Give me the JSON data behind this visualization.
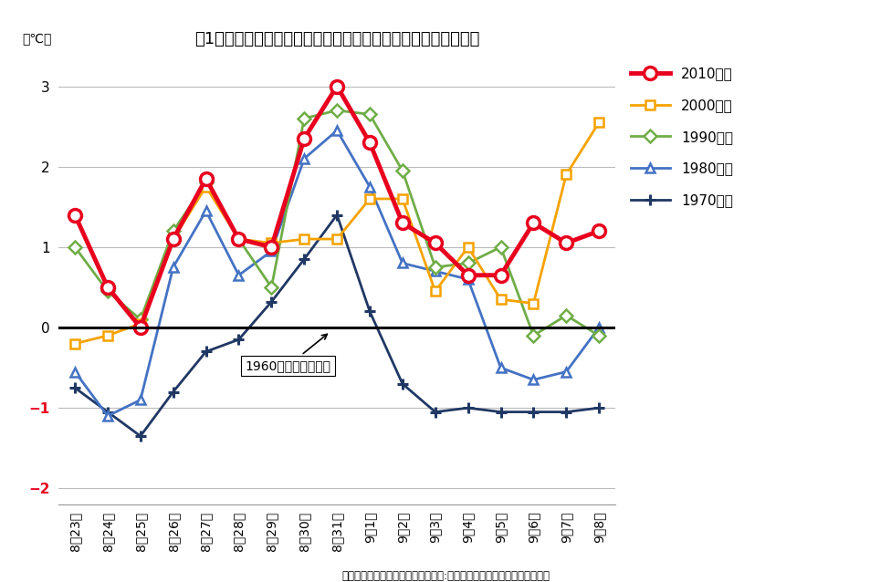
{
  "title": "図1「処暑」の期間における年代・日別平均気温の推移（津市）",
  "ylabel": "（℃）",
  "source": "（出所）「過去の地点気象データ」:気象庁、三重県統計課にて加工作成",
  "annotation": "1960年代の平均気温",
  "x_labels": [
    "8月23日",
    "8月24日",
    "8月25日",
    "8月26日",
    "8月27日",
    "8月28日",
    "8月29日",
    "8月30日",
    "8月31日",
    "9月1日",
    "9月2日",
    "9月3日",
    "9月4日",
    "9月5日",
    "9月6日",
    "9月7日",
    "9月8日"
  ],
  "series": {
    "2010年代": {
      "values": [
        1.4,
        0.5,
        0.0,
        1.1,
        1.85,
        1.1,
        1.0,
        2.35,
        3.0,
        2.3,
        1.3,
        1.05,
        0.65,
        0.65,
        1.3,
        1.05,
        1.2
      ],
      "color": "#e8001e",
      "linewidth": 3.5,
      "marker": "o",
      "markersize": 10,
      "markerfacecolor": "white",
      "markeredgewidth": 2.5,
      "zorder": 5
    },
    "2000年代": {
      "values": [
        -0.2,
        -0.1,
        0.05,
        1.1,
        1.75,
        1.1,
        1.05,
        1.1,
        1.1,
        1.6,
        1.6,
        0.45,
        1.0,
        0.35,
        0.3,
        1.9,
        2.55
      ],
      "color": "#f5a200",
      "linewidth": 2.0,
      "marker": "s",
      "markersize": 7,
      "markerfacecolor": "white",
      "markeredgewidth": 1.8,
      "zorder": 4
    },
    "1990年代": {
      "values": [
        1.0,
        0.45,
        0.1,
        1.2,
        1.8,
        1.1,
        0.5,
        2.6,
        2.7,
        2.65,
        1.95,
        0.75,
        0.8,
        1.0,
        -0.1,
        0.15,
        -0.1
      ],
      "color": "#70ad47",
      "linewidth": 2.0,
      "marker": "D",
      "markersize": 7,
      "markerfacecolor": "white",
      "markeredgewidth": 1.8,
      "zorder": 3
    },
    "1980年代": {
      "values": [
        -0.55,
        -1.1,
        -0.9,
        0.75,
        1.45,
        0.65,
        0.95,
        2.1,
        2.45,
        1.75,
        0.8,
        0.7,
        0.6,
        -0.5,
        -0.65,
        -0.55,
        0.0
      ],
      "color": "#4472c4",
      "linewidth": 2.0,
      "marker": "^",
      "markersize": 7,
      "markerfacecolor": "white",
      "markeredgewidth": 1.8,
      "zorder": 2
    },
    "1970年代": {
      "values": [
        -0.75,
        -1.05,
        -1.35,
        -0.8,
        -0.3,
        -0.15,
        0.32,
        0.85,
        1.4,
        0.2,
        -0.7,
        -1.05,
        -1.0,
        -1.05,
        -1.05,
        -1.05,
        -1.0
      ],
      "color": "#203864",
      "linewidth": 2.0,
      "marker": "+",
      "markersize": 9,
      "markerfacecolor": "#203864",
      "markeredgewidth": 2.2,
      "zorder": 1
    }
  },
  "ylim": [
    -2.2,
    3.4
  ],
  "yticks": [
    -2,
    -1,
    0,
    1,
    2,
    3
  ],
  "background_color": "#ffffff",
  "grid_color": "#bbbbbb",
  "title_fontsize": 13,
  "tick_fontsize": 10,
  "legend_fontsize": 11
}
